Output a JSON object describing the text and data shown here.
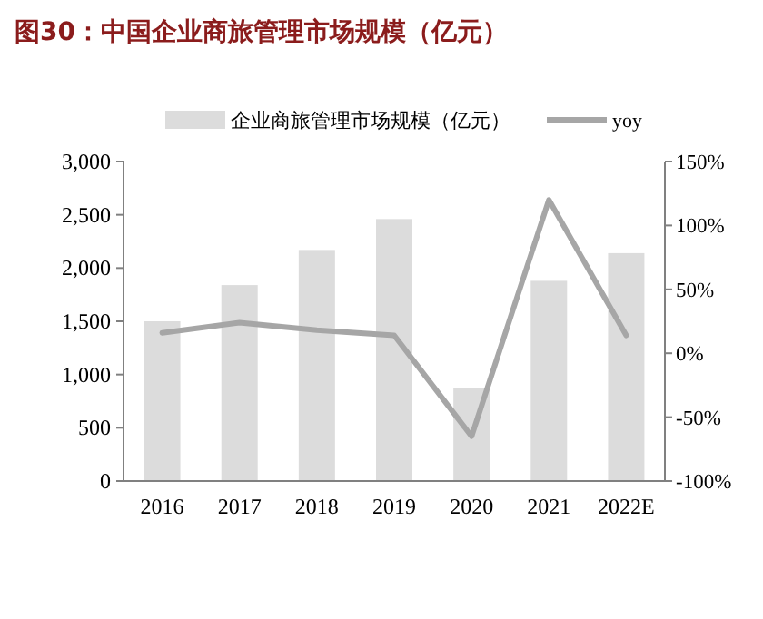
{
  "chart_data": {
    "type": "bar",
    "title": "图30：中国企业商旅管理市场规模（亿元）",
    "categories": [
      "2016",
      "2017",
      "2018",
      "2019",
      "2020",
      "2021",
      "2022E"
    ],
    "series": [
      {
        "name": "企业商旅管理市场规模（亿元）",
        "color": "#dcdcdc",
        "values": [
          1500,
          1840,
          2170,
          2460,
          870,
          1880,
          2140
        ]
      },
      {
        "name": "yoy",
        "type": "line",
        "axis": "y2",
        "color": "#a6a6a6",
        "values": [
          16,
          24,
          18,
          14,
          -65,
          120,
          14
        ]
      }
    ],
    "ylim": [
      0,
      3000
    ],
    "yticks": [
      0,
      500,
      {
        "value": 1000,
        "label": "1,000"
      },
      {
        "value": 1500,
        "label": "1,500"
      },
      {
        "value": 2000,
        "label": "2,000"
      },
      {
        "value": 2500,
        "label": "2,500"
      },
      {
        "value": 3000,
        "label": "3,000"
      }
    ],
    "y2lim": [
      -100,
      150
    ],
    "y2ticks": [
      {
        "value": -100,
        "label": "-100%"
      },
      {
        "value": -50,
        "label": "-50%"
      },
      {
        "value": 0,
        "label": "0%"
      },
      {
        "value": 50,
        "label": "50%"
      },
      {
        "value": 100,
        "label": "100%"
      },
      {
        "value": 150,
        "label": "150%"
      }
    ],
    "grid": false,
    "legend": "top",
    "marker": "none",
    "line_style": "solid"
  }
}
